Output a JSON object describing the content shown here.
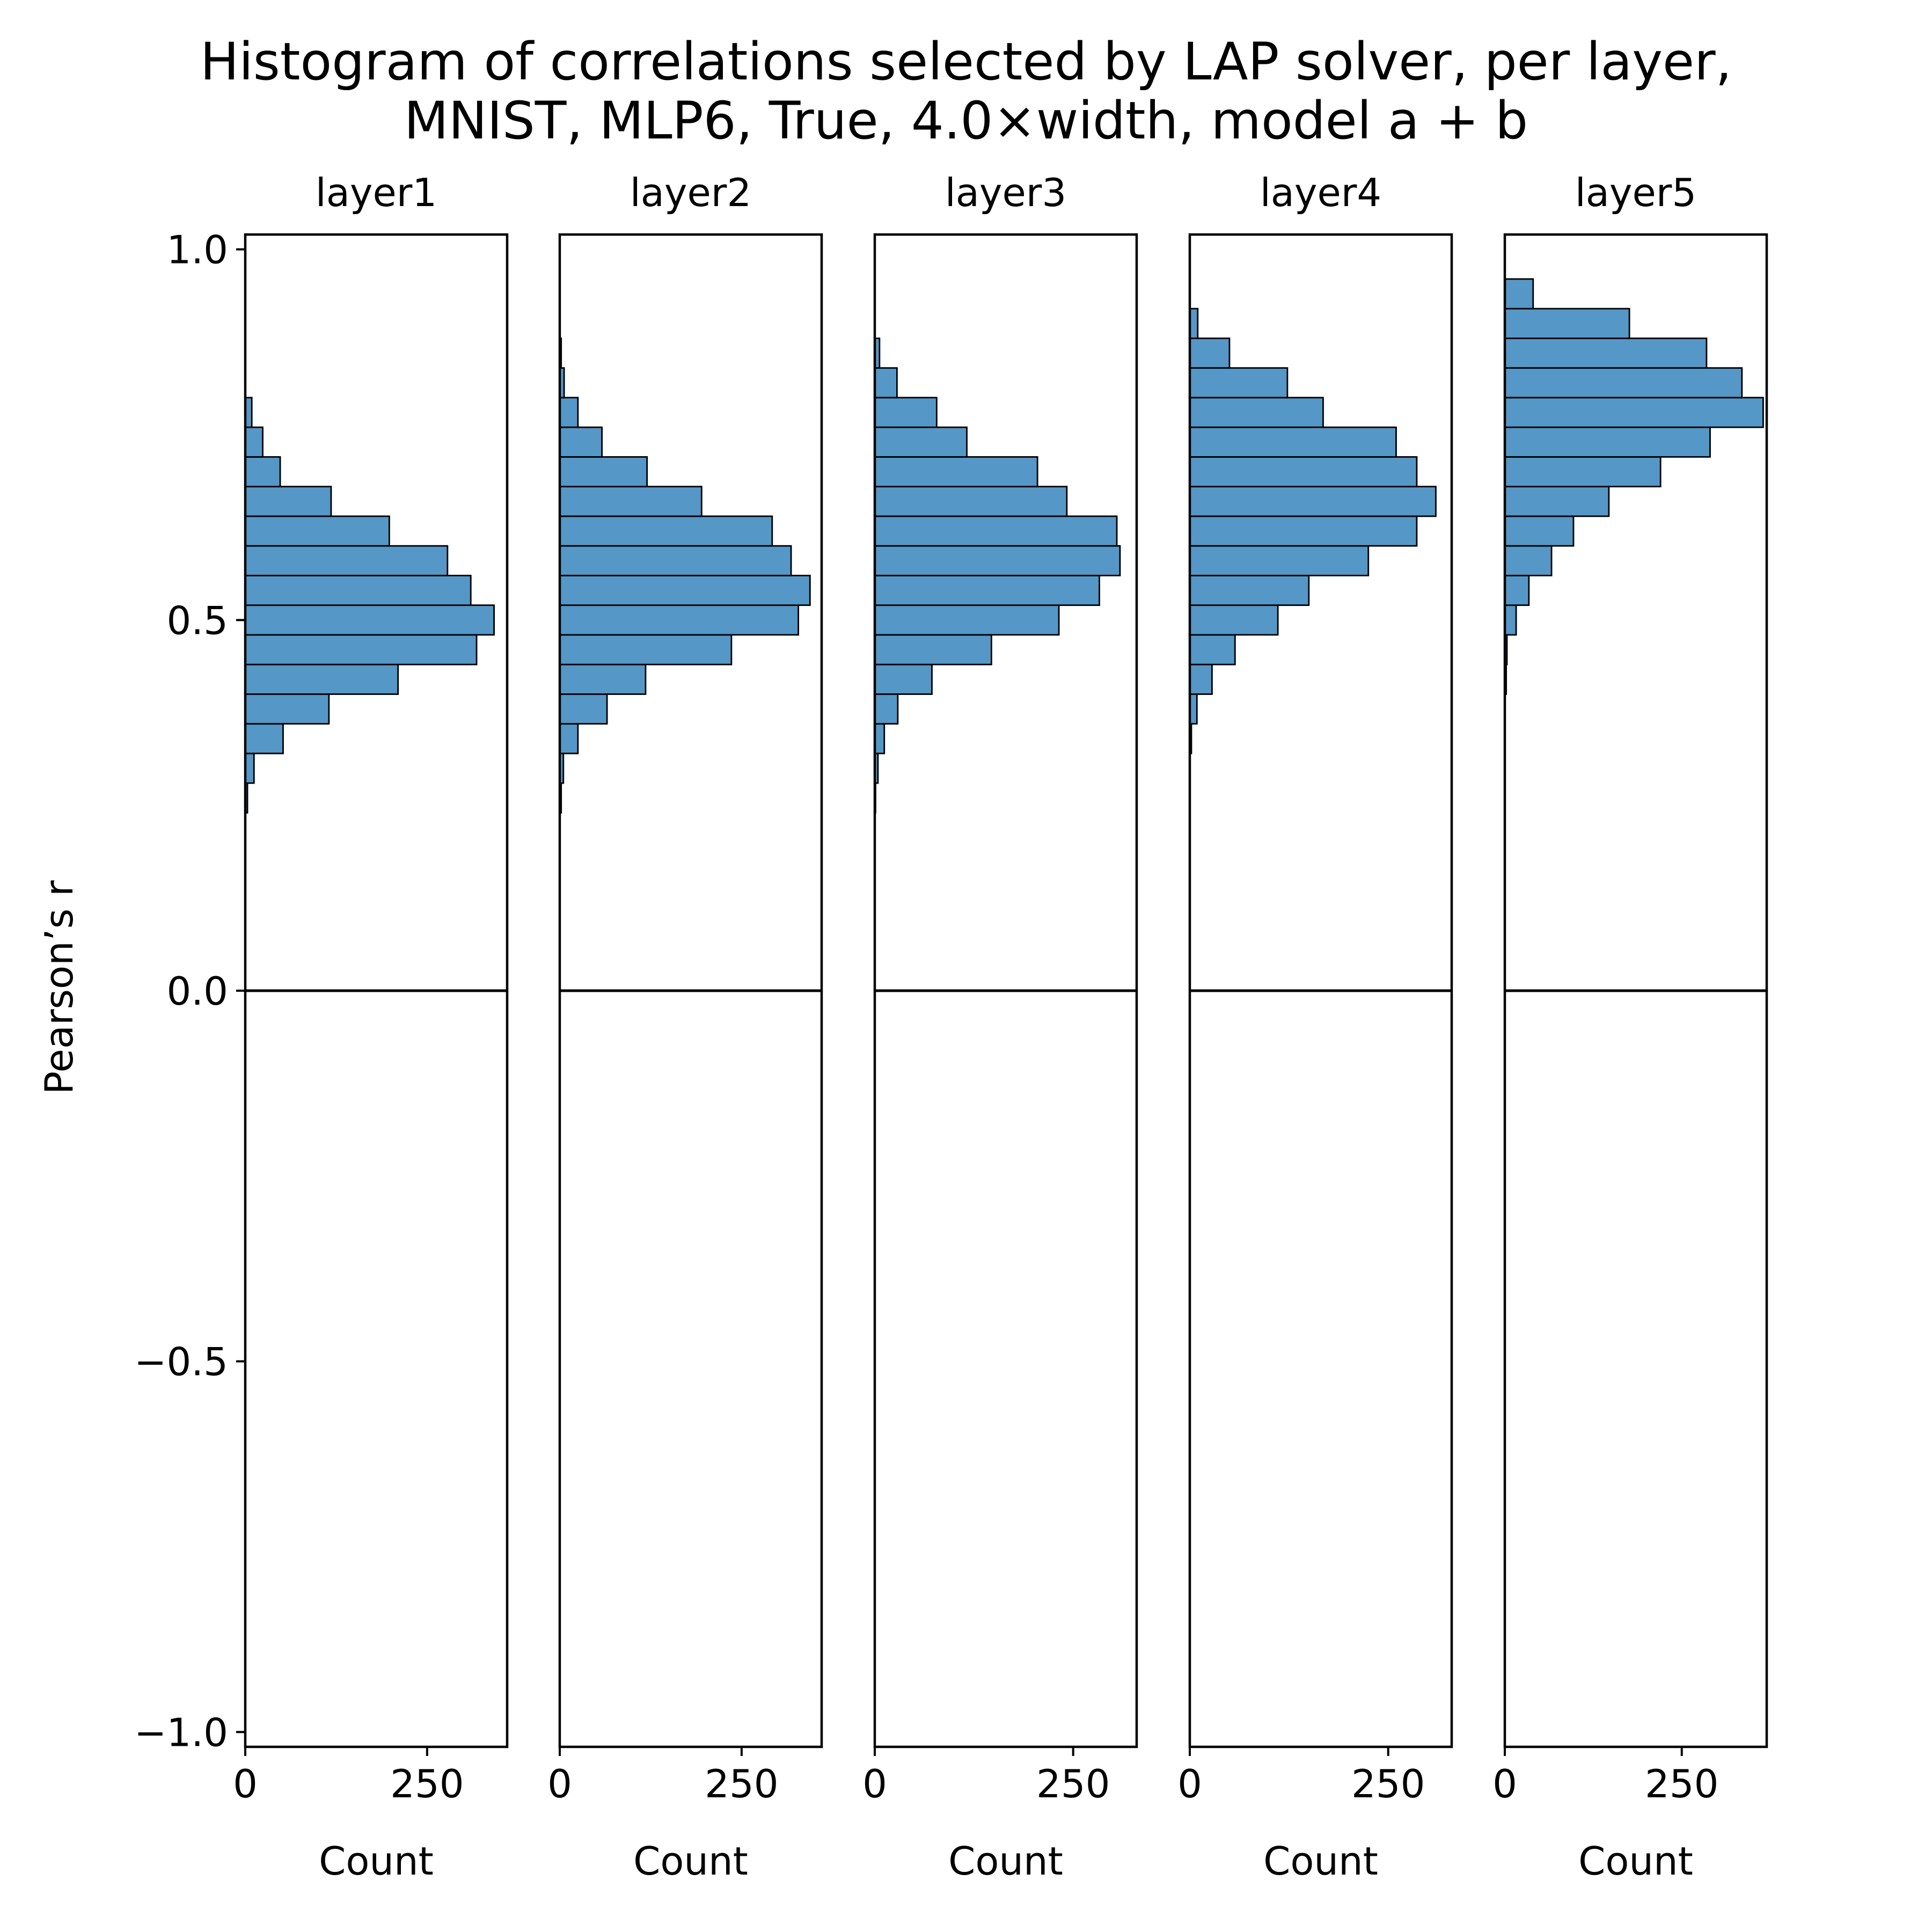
{
  "chart_data": {
    "type": "bar",
    "orientation": "horizontal-histogram",
    "title_lines": [
      "Histogram of correlations selected by LAP solver, per  layer,",
      "MNIST, MLP6, True, 4.0×width, model a + b"
    ],
    "ylabel": "Pearson’s r",
    "xlabel": "Count",
    "ylim": [
      -1.02,
      1.02
    ],
    "yticks": [
      1.0,
      0.5,
      0.0,
      -0.5,
      -1.0
    ],
    "ytick_labels": [
      "1.0",
      "0.5",
      "0.0",
      "−0.5",
      "−1.0"
    ],
    "bar_color": "#5597c6",
    "reference_line_y": 0.0,
    "panels": [
      {
        "name": "layer1",
        "xlim": [
          0,
          360
        ],
        "xticks": [
          0,
          250
        ],
        "xtick_labels": [
          "0",
          "250"
        ],
        "bins": [
          {
            "lo": 0.24,
            "hi": 0.28,
            "count": 3
          },
          {
            "lo": 0.28,
            "hi": 0.32,
            "count": 12
          },
          {
            "lo": 0.32,
            "hi": 0.36,
            "count": 52
          },
          {
            "lo": 0.36,
            "hi": 0.4,
            "count": 115
          },
          {
            "lo": 0.4,
            "hi": 0.44,
            "count": 210
          },
          {
            "lo": 0.44,
            "hi": 0.48,
            "count": 318
          },
          {
            "lo": 0.48,
            "hi": 0.52,
            "count": 342
          },
          {
            "lo": 0.52,
            "hi": 0.56,
            "count": 310
          },
          {
            "lo": 0.56,
            "hi": 0.6,
            "count": 278
          },
          {
            "lo": 0.6,
            "hi": 0.64,
            "count": 198
          },
          {
            "lo": 0.64,
            "hi": 0.68,
            "count": 118
          },
          {
            "lo": 0.68,
            "hi": 0.72,
            "count": 48
          },
          {
            "lo": 0.72,
            "hi": 0.76,
            "count": 24
          },
          {
            "lo": 0.76,
            "hi": 0.8,
            "count": 9
          }
        ]
      },
      {
        "name": "layer2",
        "xlim": [
          0,
          360
        ],
        "xticks": [
          0,
          250
        ],
        "xtick_labels": [
          "0",
          "250"
        ],
        "bins": [
          {
            "lo": 0.24,
            "hi": 0.28,
            "count": 2
          },
          {
            "lo": 0.28,
            "hi": 0.32,
            "count": 5
          },
          {
            "lo": 0.32,
            "hi": 0.36,
            "count": 25
          },
          {
            "lo": 0.36,
            "hi": 0.4,
            "count": 65
          },
          {
            "lo": 0.4,
            "hi": 0.44,
            "count": 118
          },
          {
            "lo": 0.44,
            "hi": 0.48,
            "count": 236
          },
          {
            "lo": 0.48,
            "hi": 0.52,
            "count": 328
          },
          {
            "lo": 0.52,
            "hi": 0.56,
            "count": 344
          },
          {
            "lo": 0.56,
            "hi": 0.6,
            "count": 318
          },
          {
            "lo": 0.6,
            "hi": 0.64,
            "count": 292
          },
          {
            "lo": 0.64,
            "hi": 0.68,
            "count": 195
          },
          {
            "lo": 0.68,
            "hi": 0.72,
            "count": 120
          },
          {
            "lo": 0.72,
            "hi": 0.76,
            "count": 58
          },
          {
            "lo": 0.76,
            "hi": 0.8,
            "count": 25
          },
          {
            "lo": 0.8,
            "hi": 0.84,
            "count": 6
          },
          {
            "lo": 0.84,
            "hi": 0.88,
            "count": 2
          }
        ]
      },
      {
        "name": "layer3",
        "xlim": [
          0,
          330
        ],
        "xticks": [
          0,
          250
        ],
        "xtick_labels": [
          "0",
          "250"
        ],
        "bins": [
          {
            "lo": 0.24,
            "hi": 0.28,
            "count": 1
          },
          {
            "lo": 0.28,
            "hi": 0.32,
            "count": 4
          },
          {
            "lo": 0.32,
            "hi": 0.36,
            "count": 12
          },
          {
            "lo": 0.36,
            "hi": 0.4,
            "count": 29
          },
          {
            "lo": 0.4,
            "hi": 0.44,
            "count": 72
          },
          {
            "lo": 0.44,
            "hi": 0.48,
            "count": 147
          },
          {
            "lo": 0.48,
            "hi": 0.52,
            "count": 232
          },
          {
            "lo": 0.52,
            "hi": 0.56,
            "count": 283
          },
          {
            "lo": 0.56,
            "hi": 0.6,
            "count": 309
          },
          {
            "lo": 0.6,
            "hi": 0.64,
            "count": 305
          },
          {
            "lo": 0.64,
            "hi": 0.68,
            "count": 242
          },
          {
            "lo": 0.68,
            "hi": 0.72,
            "count": 205
          },
          {
            "lo": 0.72,
            "hi": 0.76,
            "count": 116
          },
          {
            "lo": 0.76,
            "hi": 0.8,
            "count": 78
          },
          {
            "lo": 0.8,
            "hi": 0.84,
            "count": 28
          },
          {
            "lo": 0.84,
            "hi": 0.88,
            "count": 6
          }
        ]
      },
      {
        "name": "layer4",
        "xlim": [
          0,
          330
        ],
        "xticks": [
          0,
          250
        ],
        "xtick_labels": [
          "0",
          "250"
        ],
        "bins": [
          {
            "lo": 0.32,
            "hi": 0.36,
            "count": 2
          },
          {
            "lo": 0.36,
            "hi": 0.4,
            "count": 9
          },
          {
            "lo": 0.4,
            "hi": 0.44,
            "count": 28
          },
          {
            "lo": 0.44,
            "hi": 0.48,
            "count": 57
          },
          {
            "lo": 0.48,
            "hi": 0.52,
            "count": 111
          },
          {
            "lo": 0.52,
            "hi": 0.56,
            "count": 150
          },
          {
            "lo": 0.56,
            "hi": 0.6,
            "count": 225
          },
          {
            "lo": 0.6,
            "hi": 0.64,
            "count": 286
          },
          {
            "lo": 0.64,
            "hi": 0.68,
            "count": 310
          },
          {
            "lo": 0.68,
            "hi": 0.72,
            "count": 286
          },
          {
            "lo": 0.72,
            "hi": 0.76,
            "count": 260
          },
          {
            "lo": 0.76,
            "hi": 0.8,
            "count": 168
          },
          {
            "lo": 0.8,
            "hi": 0.84,
            "count": 123
          },
          {
            "lo": 0.84,
            "hi": 0.88,
            "count": 50
          },
          {
            "lo": 0.88,
            "hi": 0.92,
            "count": 10
          }
        ]
      },
      {
        "name": "layer5",
        "xlim": [
          0,
          370
        ],
        "xticks": [
          0,
          250
        ],
        "xtick_labels": [
          "0",
          "250"
        ],
        "bins": [
          {
            "lo": 0.4,
            "hi": 0.44,
            "count": 2
          },
          {
            "lo": 0.44,
            "hi": 0.48,
            "count": 3
          },
          {
            "lo": 0.48,
            "hi": 0.52,
            "count": 16
          },
          {
            "lo": 0.52,
            "hi": 0.56,
            "count": 34
          },
          {
            "lo": 0.56,
            "hi": 0.6,
            "count": 66
          },
          {
            "lo": 0.6,
            "hi": 0.64,
            "count": 97
          },
          {
            "lo": 0.64,
            "hi": 0.68,
            "count": 147
          },
          {
            "lo": 0.68,
            "hi": 0.72,
            "count": 220
          },
          {
            "lo": 0.72,
            "hi": 0.76,
            "count": 290
          },
          {
            "lo": 0.76,
            "hi": 0.8,
            "count": 365
          },
          {
            "lo": 0.8,
            "hi": 0.84,
            "count": 335
          },
          {
            "lo": 0.84,
            "hi": 0.88,
            "count": 285
          },
          {
            "lo": 0.88,
            "hi": 0.92,
            "count": 176
          },
          {
            "lo": 0.92,
            "hi": 0.96,
            "count": 40
          }
        ]
      }
    ]
  }
}
